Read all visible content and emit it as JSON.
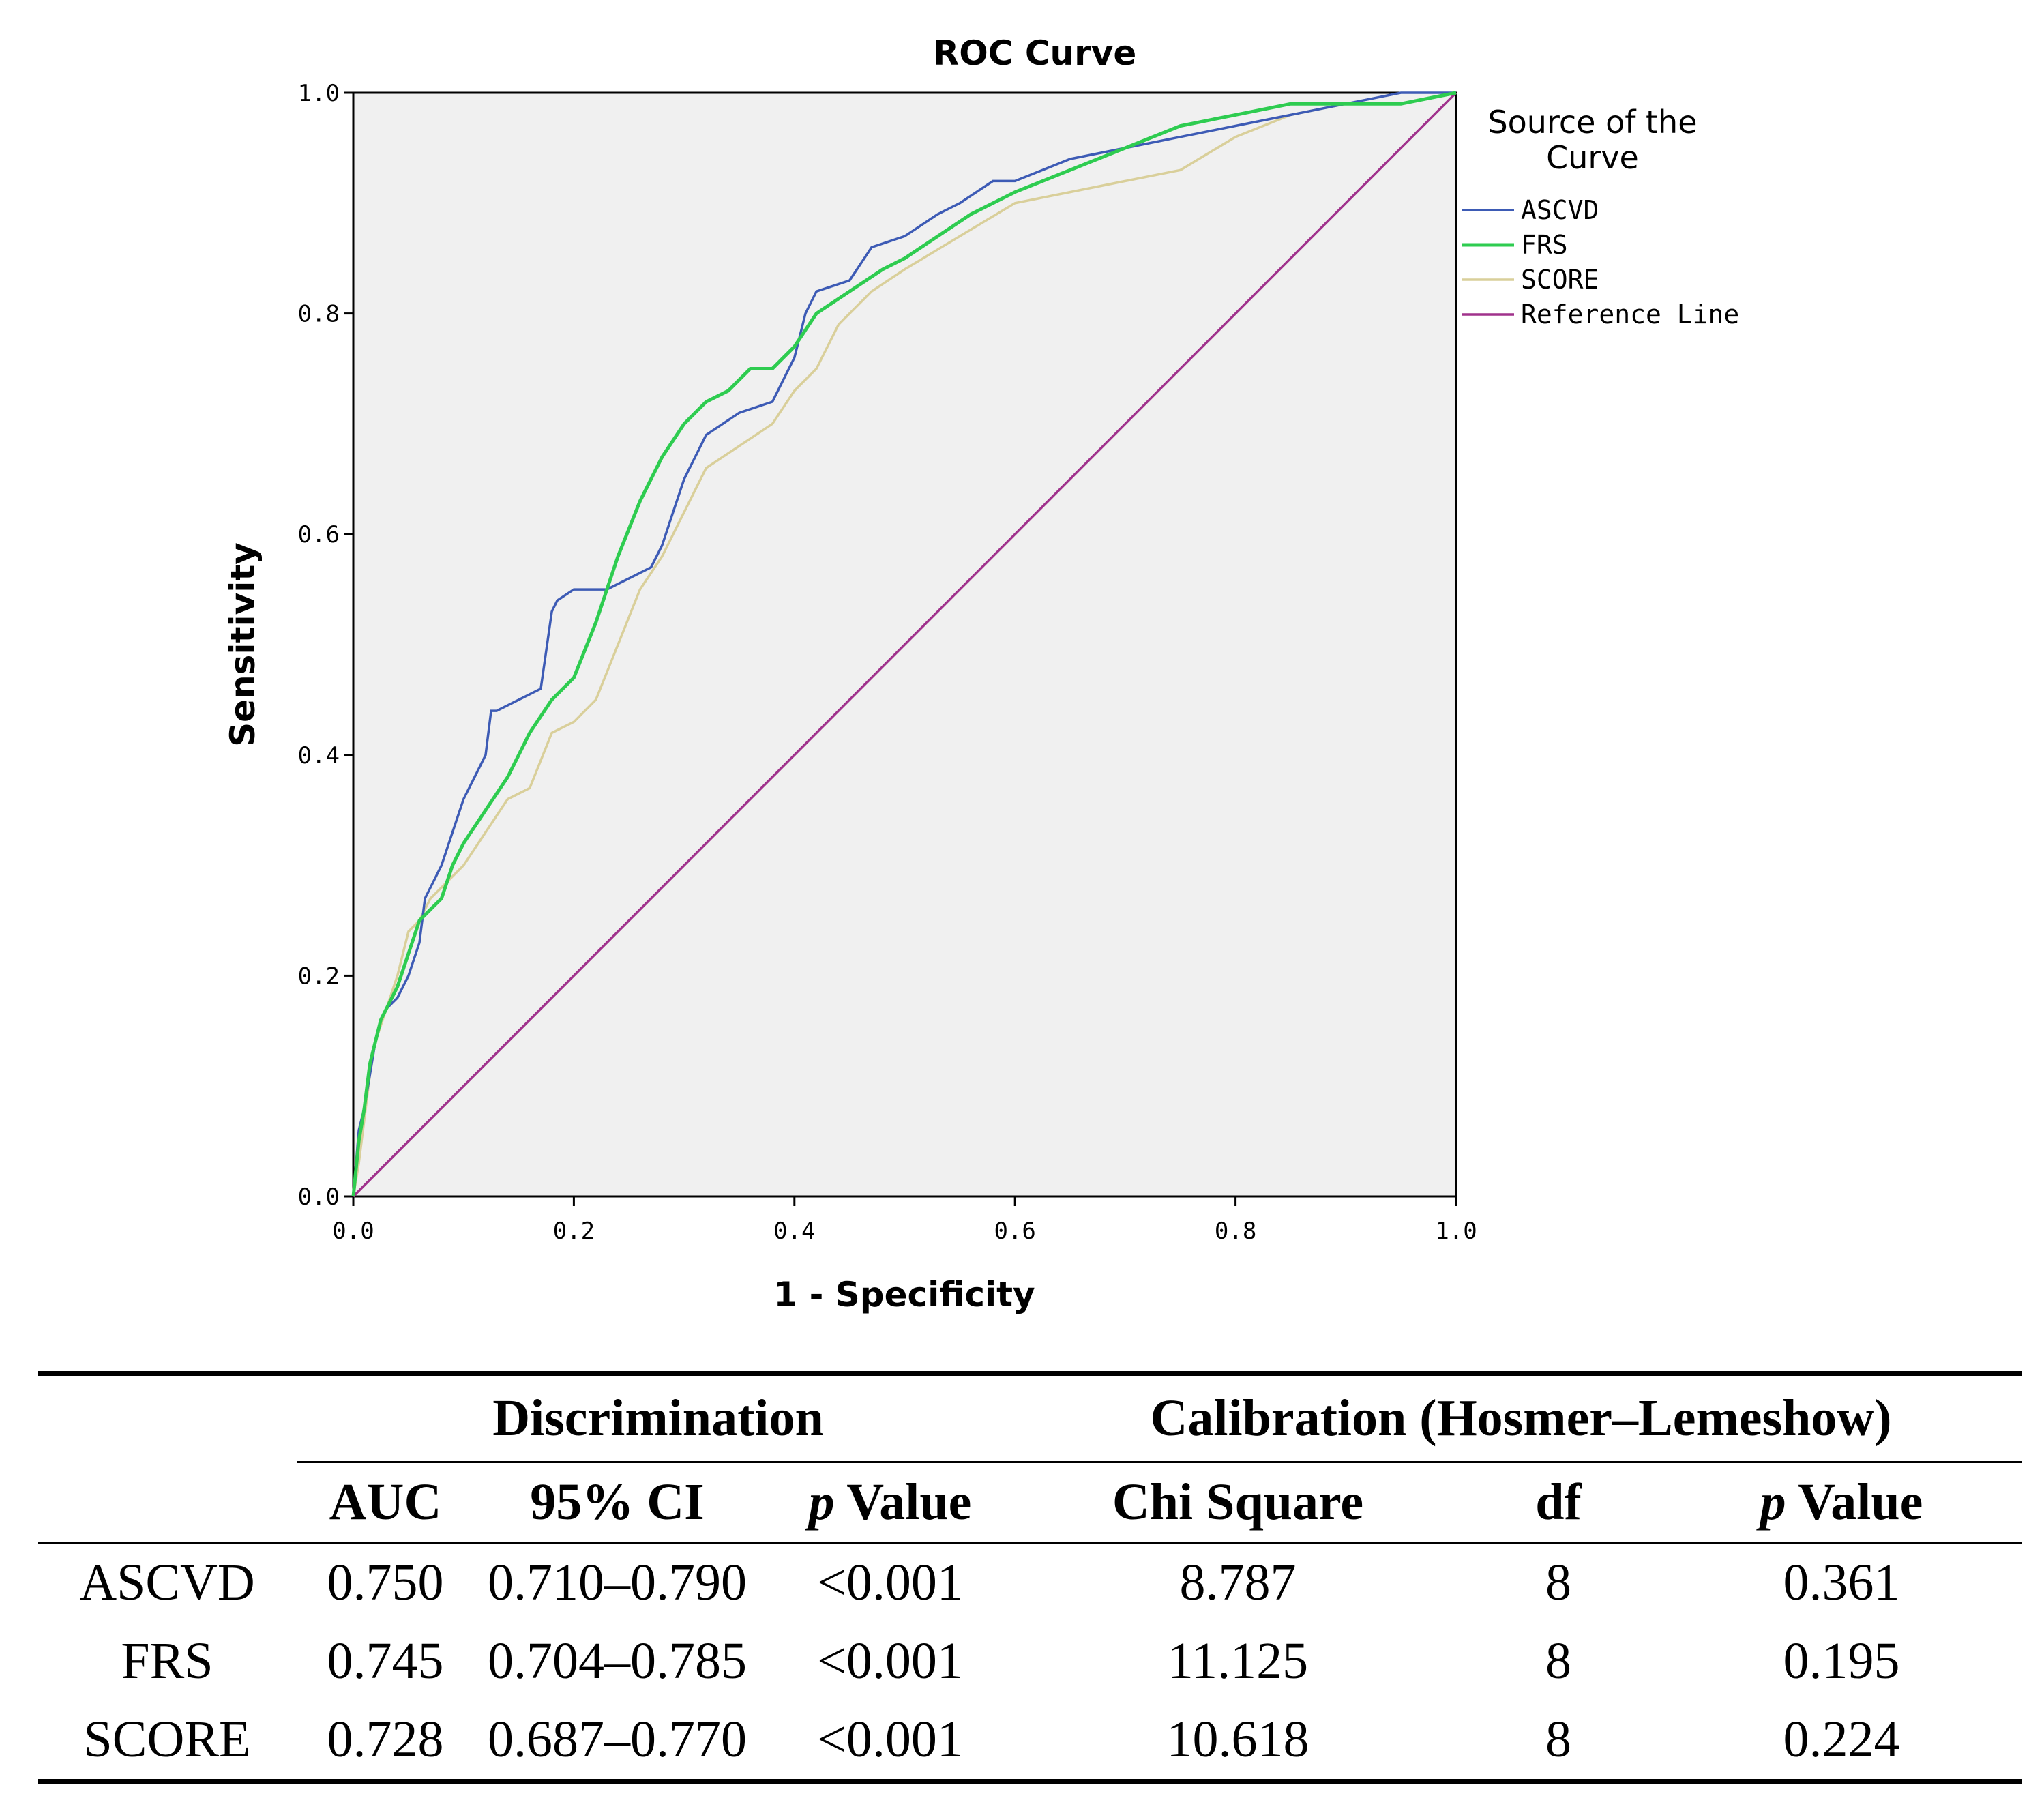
{
  "chart_data": {
    "type": "line",
    "title": "ROC Curve",
    "xlabel": "1 - Specificity",
    "ylabel": "Sensitivity",
    "xlim": [
      0.0,
      1.0
    ],
    "ylim": [
      0.0,
      1.0
    ],
    "xticks": [
      "0.0",
      "0.2",
      "0.4",
      "0.6",
      "0.8",
      "1.0"
    ],
    "yticks": [
      "0.0",
      "0.2",
      "0.4",
      "0.6",
      "0.8",
      "1.0"
    ],
    "grid": false,
    "legend": {
      "title": "Source of the Curve",
      "position": "right"
    },
    "series": [
      {
        "name": "ASCVD",
        "color": "#3d5bb5",
        "x": [
          0.0,
          0.005,
          0.01,
          0.015,
          0.02,
          0.025,
          0.03,
          0.04,
          0.05,
          0.06,
          0.065,
          0.07,
          0.08,
          0.09,
          0.1,
          0.11,
          0.12,
          0.125,
          0.13,
          0.15,
          0.17,
          0.18,
          0.185,
          0.2,
          0.23,
          0.25,
          0.27,
          0.28,
          0.29,
          0.3,
          0.32,
          0.35,
          0.38,
          0.4,
          0.41,
          0.42,
          0.45,
          0.47,
          0.5,
          0.53,
          0.55,
          0.58,
          0.6,
          0.65,
          0.7,
          0.75,
          0.8,
          0.85,
          0.9,
          0.95,
          1.0
        ],
        "y": [
          0.0,
          0.06,
          0.08,
          0.11,
          0.14,
          0.16,
          0.17,
          0.18,
          0.2,
          0.23,
          0.27,
          0.28,
          0.3,
          0.33,
          0.36,
          0.38,
          0.4,
          0.44,
          0.44,
          0.45,
          0.46,
          0.53,
          0.54,
          0.55,
          0.55,
          0.56,
          0.57,
          0.59,
          0.62,
          0.65,
          0.69,
          0.71,
          0.72,
          0.76,
          0.8,
          0.82,
          0.83,
          0.86,
          0.87,
          0.89,
          0.9,
          0.92,
          0.92,
          0.94,
          0.95,
          0.96,
          0.97,
          0.98,
          0.99,
          1.0,
          1.0
        ]
      },
      {
        "name": "FRS",
        "color": "#2ecc50",
        "x": [
          0.0,
          0.005,
          0.01,
          0.015,
          0.02,
          0.025,
          0.03,
          0.04,
          0.05,
          0.06,
          0.07,
          0.08,
          0.09,
          0.1,
          0.12,
          0.14,
          0.16,
          0.18,
          0.2,
          0.22,
          0.24,
          0.26,
          0.28,
          0.3,
          0.32,
          0.34,
          0.36,
          0.38,
          0.4,
          0.42,
          0.45,
          0.48,
          0.5,
          0.53,
          0.56,
          0.6,
          0.65,
          0.7,
          0.75,
          0.8,
          0.85,
          0.9,
          0.95,
          1.0
        ],
        "y": [
          0.0,
          0.05,
          0.08,
          0.12,
          0.14,
          0.16,
          0.17,
          0.19,
          0.22,
          0.25,
          0.26,
          0.27,
          0.3,
          0.32,
          0.35,
          0.38,
          0.42,
          0.45,
          0.47,
          0.52,
          0.58,
          0.63,
          0.67,
          0.7,
          0.72,
          0.73,
          0.75,
          0.75,
          0.77,
          0.8,
          0.82,
          0.84,
          0.85,
          0.87,
          0.89,
          0.91,
          0.93,
          0.95,
          0.97,
          0.98,
          0.99,
          0.99,
          0.99,
          1.0
        ]
      },
      {
        "name": "SCORE",
        "color": "#d9cf9a",
        "x": [
          0.0,
          0.005,
          0.01,
          0.015,
          0.02,
          0.03,
          0.04,
          0.05,
          0.06,
          0.07,
          0.08,
          0.1,
          0.12,
          0.14,
          0.16,
          0.18,
          0.2,
          0.22,
          0.24,
          0.26,
          0.28,
          0.3,
          0.32,
          0.35,
          0.38,
          0.4,
          0.42,
          0.44,
          0.47,
          0.5,
          0.55,
          0.6,
          0.65,
          0.7,
          0.75,
          0.8,
          0.85,
          0.9,
          0.95,
          1.0
        ],
        "y": [
          0.0,
          0.03,
          0.07,
          0.11,
          0.14,
          0.17,
          0.2,
          0.24,
          0.25,
          0.27,
          0.28,
          0.3,
          0.33,
          0.36,
          0.37,
          0.42,
          0.43,
          0.45,
          0.5,
          0.55,
          0.58,
          0.62,
          0.66,
          0.68,
          0.7,
          0.73,
          0.75,
          0.79,
          0.82,
          0.84,
          0.87,
          0.9,
          0.91,
          0.92,
          0.93,
          0.96,
          0.98,
          0.99,
          0.99,
          1.0
        ]
      },
      {
        "name": "Reference Line",
        "color": "#a0328c",
        "x": [
          0.0,
          1.0
        ],
        "y": [
          0.0,
          1.0
        ]
      }
    ]
  },
  "table": {
    "group_headers": [
      "Discrimination",
      "Calibration (Hosmer–Lemeshow)"
    ],
    "columns": [
      "AUC",
      "95% CI",
      "Value",
      "Chi Square",
      "df",
      "Value"
    ],
    "p_italic": "p",
    "rows": [
      [
        "ASCVD",
        "0.750",
        "0.710–0.790",
        "<0.001",
        "8.787",
        "8",
        "0.361"
      ],
      [
        "FRS",
        "0.745",
        "0.704–0.785",
        "<0.001",
        "11.125",
        "8",
        "0.195"
      ],
      [
        "SCORE",
        "0.728",
        "0.687–0.770",
        "<0.001",
        "10.618",
        "8",
        "0.224"
      ]
    ]
  },
  "legend": {
    "title_line1": "Source of the",
    "title_line2": "Curve"
  }
}
